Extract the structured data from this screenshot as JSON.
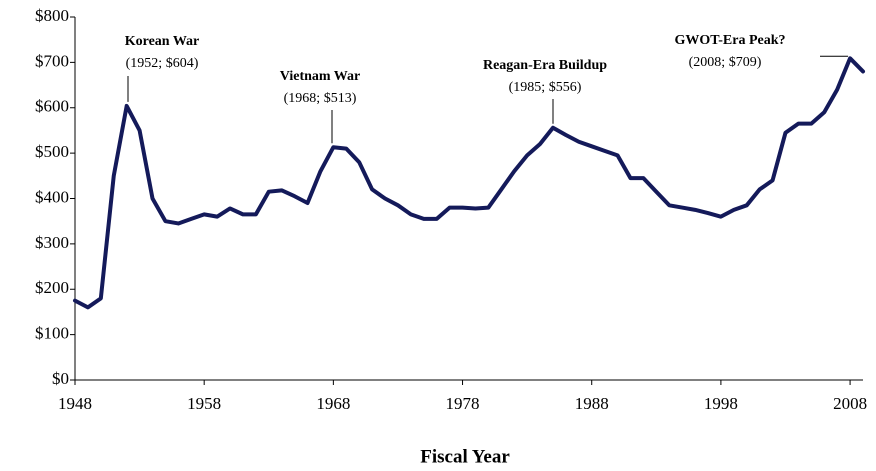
{
  "chart_data": {
    "type": "line",
    "x_label": "Fiscal Year",
    "x": [
      1948,
      1949,
      1950,
      1951,
      1952,
      1953,
      1954,
      1955,
      1956,
      1957,
      1958,
      1959,
      1960,
      1961,
      1962,
      1963,
      1964,
      1965,
      1966,
      1967,
      1968,
      1969,
      1970,
      1971,
      1972,
      1973,
      1974,
      1975,
      1976,
      1977,
      1978,
      1979,
      1980,
      1981,
      1982,
      1983,
      1984,
      1985,
      1986,
      1987,
      1988,
      1989,
      1990,
      1991,
      1992,
      1993,
      1994,
      1995,
      1996,
      1997,
      1998,
      1999,
      2000,
      2001,
      2002,
      2003,
      2004,
      2005,
      2006,
      2007,
      2008,
      2009
    ],
    "series": [
      {
        "color": "#141a5a",
        "values": [
          175,
          160,
          180,
          450,
          604,
          550,
          400,
          350,
          345,
          355,
          365,
          360,
          378,
          365,
          365,
          415,
          418,
          405,
          390,
          460,
          513,
          510,
          480,
          420,
          400,
          385,
          365,
          355,
          355,
          380,
          380,
          378,
          380,
          420,
          460,
          495,
          520,
          556,
          540,
          525,
          515,
          505,
          495,
          445,
          445,
          415,
          385,
          380,
          375,
          368,
          360,
          375,
          385,
          420,
          440,
          545,
          565,
          565,
          590,
          640,
          709,
          680
        ]
      }
    ],
    "xlim": [
      1948,
      2009
    ],
    "xticks": [
      1948,
      1958,
      1968,
      1978,
      1988,
      1998,
      2008
    ],
    "ylim": [
      0,
      800
    ],
    "yticks": [
      {
        "value": 0,
        "label": "$0"
      },
      {
        "value": 100,
        "label": "$100"
      },
      {
        "value": 200,
        "label": "$200"
      },
      {
        "value": 300,
        "label": "$300"
      },
      {
        "value": 400,
        "label": "$400"
      },
      {
        "value": 500,
        "label": "$500"
      },
      {
        "value": 600,
        "label": "$600"
      },
      {
        "value": 700,
        "label": "$700"
      },
      {
        "value": 800,
        "label": "$800"
      }
    ],
    "annotations": [
      {
        "title": "Korean War",
        "detail": "(1952; $604)"
      },
      {
        "title": "Vietnam War",
        "detail": "(1968; $513)"
      },
      {
        "title": "Reagan-Era Buildup",
        "detail": "(1985; $556)"
      },
      {
        "title": "GWOT-Era Peak?",
        "detail": "(2008; $709)"
      }
    ]
  }
}
